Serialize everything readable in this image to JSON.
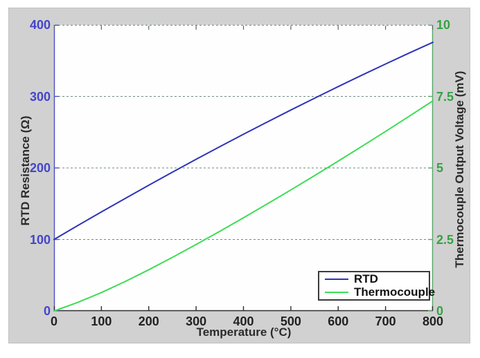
{
  "figure": {
    "xlabel": "Temperature (°C)",
    "ylabel_left": "RTD Resistance (Ω)",
    "ylabel_right": "Thermocouple Output Voltage (mV)",
    "x_tick_labels": [
      "0",
      "100",
      "200",
      "300",
      "400",
      "500",
      "600",
      "700",
      "800"
    ],
    "y_tick_labels_left": [
      "0",
      "100",
      "200",
      "300",
      "400"
    ],
    "y_tick_labels_right": [
      "0",
      "2.5",
      "5",
      "7.5",
      "10"
    ],
    "legend": [
      {
        "label": "RTD",
        "color": "#2c34b8"
      },
      {
        "label": "Thermocouple",
        "color": "#3ddc55"
      }
    ],
    "colors": {
      "panel_bg": "#d1d1d1",
      "plot_bg": "#fefefe",
      "left_axis": "#4b4bc8",
      "left_tick_text": "#4444cc",
      "right_axis": "#56a96a",
      "right_tick_text": "#33a344",
      "x_tick_text": "#222222",
      "grid": "#6f8a7c",
      "bottom_axis": "#2e2e2e"
    }
  },
  "chart_data": {
    "type": "line",
    "title": "",
    "xlabel": "Temperature (°C)",
    "ylabel_left": "RTD Resistance (Ω)",
    "ylabel_right": "Thermocouple Output Voltage (mV)",
    "xlim": [
      0,
      800
    ],
    "ylim_left": [
      0,
      400
    ],
    "ylim_right": [
      0,
      10
    ],
    "x_ticks": [
      0,
      100,
      200,
      300,
      400,
      500,
      600,
      700,
      800
    ],
    "y_ticks_left": [
      0,
      100,
      200,
      300,
      400
    ],
    "y_ticks_right": [
      0,
      2.5,
      5,
      7.5,
      10
    ],
    "grid": "horizontal dashed",
    "legend_position": "lower right",
    "x": [
      0,
      50,
      100,
      150,
      200,
      250,
      300,
      350,
      400,
      450,
      500,
      550,
      600,
      650,
      700,
      750,
      800
    ],
    "series": [
      {
        "name": "RTD",
        "axis": "left",
        "color": "#2c34b8",
        "values": [
          100.0,
          119.4,
          138.51,
          157.33,
          175.86,
          194.1,
          212.05,
          229.72,
          247.09,
          264.18,
          280.98,
          297.49,
          313.71,
          329.64,
          345.28,
          360.64,
          375.7
        ]
      },
      {
        "name": "Thermocouple",
        "axis": "right",
        "color": "#3ddc55",
        "values": [
          0.0,
          0.299,
          0.646,
          1.029,
          1.441,
          1.874,
          2.323,
          2.786,
          3.259,
          3.742,
          4.233,
          4.732,
          5.239,
          5.753,
          6.275,
          6.806,
          7.345
        ]
      }
    ]
  }
}
